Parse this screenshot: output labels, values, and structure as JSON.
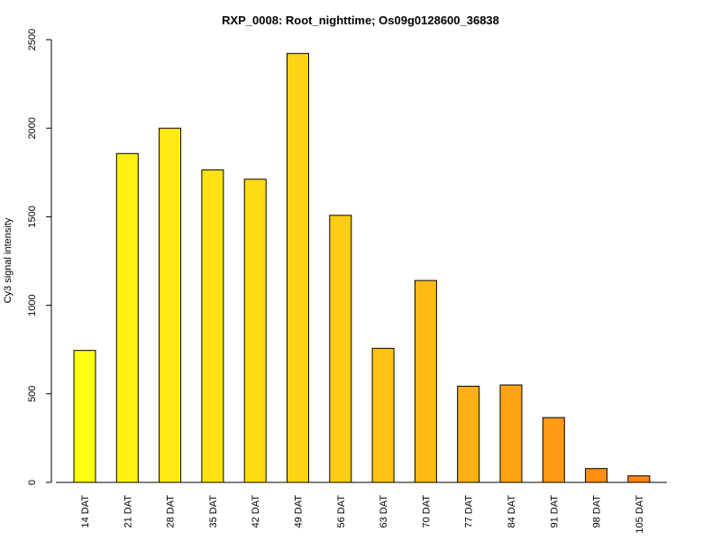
{
  "chart_data": {
    "type": "bar",
    "title": "RXP_0008: Root_nighttime; Os09g0128600_36838",
    "xlabel": "",
    "ylabel": "Cy3 signal intensity",
    "categories": [
      "14 DAT",
      "21 DAT",
      "28 DAT",
      "35 DAT",
      "42 DAT",
      "49 DAT",
      "56 DAT",
      "63 DAT",
      "70 DAT",
      "77 DAT",
      "84 DAT",
      "91 DAT",
      "98 DAT",
      "105 DAT"
    ],
    "values": [
      745,
      1857,
      2000,
      1765,
      1712,
      2422,
      1508,
      757,
      1140,
      543,
      550,
      366,
      78,
      37
    ],
    "ylim": [
      0,
      2500
    ],
    "yticks": [
      0,
      500,
      1000,
      1500,
      2000,
      2500
    ],
    "grid": false,
    "colors": [
      "#FFFF14",
      "#FFF014",
      "#FFE914",
      "#FFE214",
      "#FFDB14",
      "#FFD414",
      "#FFCB14",
      "#FFC314",
      "#FFBB14",
      "#FFB014",
      "#FFA514",
      "#FF9A14",
      "#FF8E14",
      "#FF8214"
    ]
  }
}
